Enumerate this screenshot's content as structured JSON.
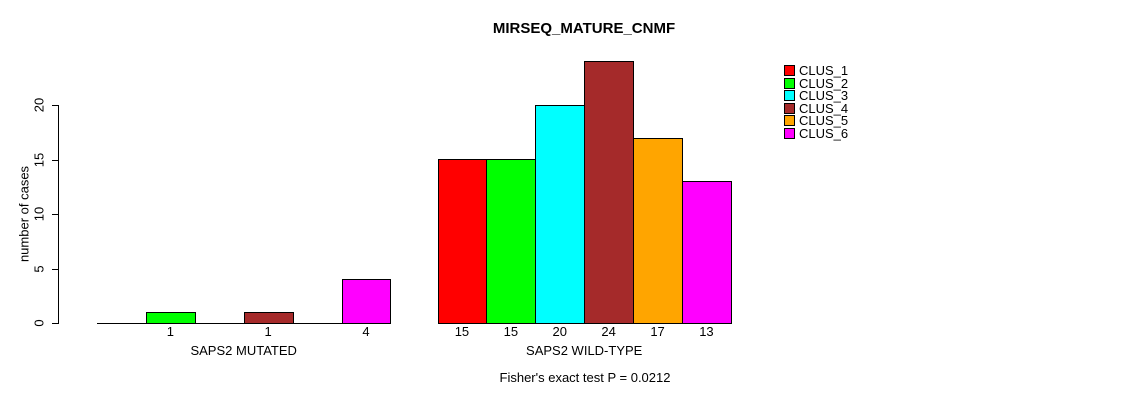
{
  "chart_data": {
    "type": "bar",
    "title": "MIRSEQ_MATURE_CNMF",
    "ylabel": "number of cases",
    "xlabel": "",
    "categories": [
      "SAPS2 MUTATED",
      "SAPS2 WILD-TYPE"
    ],
    "series": [
      {
        "name": "CLUS_1",
        "color": "#ff0000",
        "values": [
          0,
          15
        ]
      },
      {
        "name": "CLUS_2",
        "color": "#00ff00",
        "values": [
          1,
          15
        ]
      },
      {
        "name": "CLUS_3",
        "color": "#00ffff",
        "values": [
          0,
          20
        ]
      },
      {
        "name": "CLUS_4",
        "color": "#a52a2a",
        "values": [
          1,
          24
        ]
      },
      {
        "name": "CLUS_5",
        "color": "#ffa500",
        "values": [
          0,
          17
        ]
      },
      {
        "name": "CLUS_6",
        "color": "#ff00ff",
        "values": [
          4,
          13
        ]
      }
    ],
    "bar_value_labels": [
      [
        "",
        "1",
        "",
        "1",
        "",
        "4"
      ],
      [
        "15",
        "15",
        "20",
        "24",
        "17",
        "13"
      ]
    ],
    "yticks": [
      0,
      5,
      10,
      15,
      20
    ],
    "ylim": [
      0,
      24
    ],
    "grid": false,
    "legend_position": "right",
    "annotation": "Fisher's exact test P = 0.0212",
    "bar_border_color": "#000000",
    "background_color": "#ffffff"
  }
}
